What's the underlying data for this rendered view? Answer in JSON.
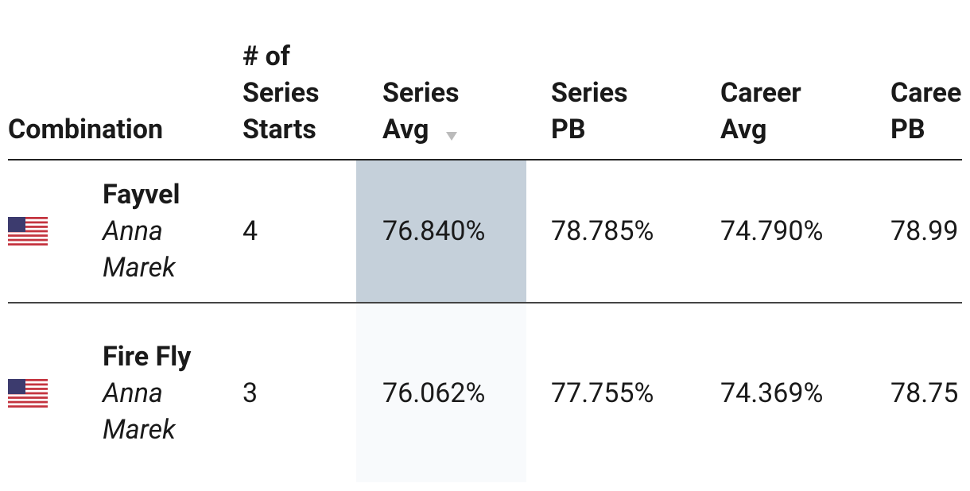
{
  "table": {
    "headers": [
      "Combination",
      "# of Series Starts",
      "Series Avg",
      "Series PB",
      "Career Avg",
      "Career PB"
    ],
    "rows": [
      {
        "horse": "Fayvel",
        "rider": "Anna Marek",
        "starts": "4",
        "series_avg": "76.840%",
        "series_pb": "78.785%",
        "career_avg": "74.790%",
        "career_pb": "78.99"
      },
      {
        "horse": "Fire Fly",
        "rider": "Anna Marek",
        "starts": "3",
        "series_avg": "76.062%",
        "series_pb": "77.755%",
        "career_avg": "74.369%",
        "career_pb": "78.75"
      }
    ]
  }
}
